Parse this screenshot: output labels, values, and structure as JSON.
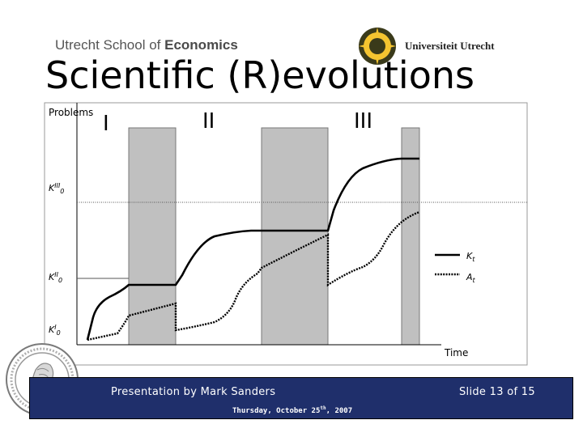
{
  "header": {
    "school_prefix": "Utrecht School of ",
    "school_suffix": "Economics",
    "university": "Universiteit Utrecht"
  },
  "title": "Scientific (R)evolutions",
  "diagram": {
    "y_axis_label": "Problems",
    "x_axis_label": "Time",
    "phases": [
      "I",
      "II",
      "III"
    ],
    "levels": [
      {
        "base": "K",
        "sup": "III",
        "sub": "0"
      },
      {
        "base": "K",
        "sup": "II",
        "sub": "0"
      },
      {
        "base": "K",
        "sup": "I",
        "sub": "0"
      }
    ],
    "legend": [
      {
        "base": "K",
        "sub": "t",
        "style": "solid"
      },
      {
        "base": "A",
        "sub": "t",
        "style": "dotted"
      }
    ]
  },
  "footer": {
    "presenter": "Presentation by Mark Sanders",
    "date_prefix": "Thursday, October 25",
    "date_sup": "th",
    "date_suffix": ", 2007",
    "slide": "Slide 13 of 15"
  },
  "colors": {
    "footer_bg": "#1f2f6b",
    "band_fill": "#c0c0c0",
    "title": "#000000"
  }
}
